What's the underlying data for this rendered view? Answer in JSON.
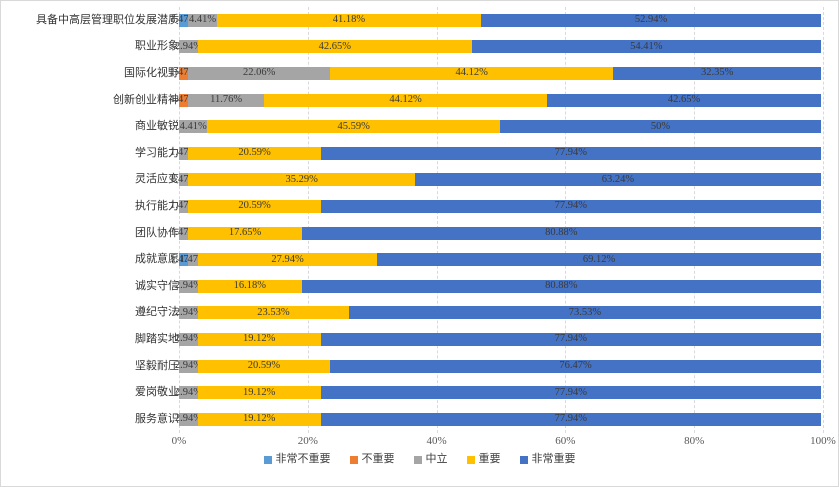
{
  "chart_data": {
    "type": "bar",
    "orientation": "horizontal",
    "stacked": true,
    "title": "",
    "xlabel": "",
    "ylabel": "",
    "xlim": [
      0,
      100
    ],
    "grid": "vertical-dashed",
    "legend_position": "bottom-center",
    "axis_ticks": [
      "0%",
      "20%",
      "40%",
      "60%",
      "80%",
      "100%"
    ],
    "legend": [
      {
        "name": "非常不重要",
        "color": "#5B9BD5"
      },
      {
        "name": "不重要",
        "color": "#ED7D31"
      },
      {
        "name": "中立",
        "color": "#A5A5A5"
      },
      {
        "name": "重要",
        "color": "#FFC000"
      },
      {
        "name": "非常重要",
        "color": "#4472C4"
      }
    ],
    "rows": [
      {
        "category": "具备中高层管理职位发展潜质",
        "values": [
          1.47,
          0,
          4.41,
          41.18,
          52.94
        ],
        "labels": [
          "1.47%",
          "",
          "4.41%",
          "41.18%",
          "52.94%"
        ]
      },
      {
        "category": "职业形象",
        "values": [
          0,
          0,
          2.94,
          42.65,
          54.41
        ],
        "labels": [
          "",
          "",
          "2.94%",
          "42.65%",
          "54.41%"
        ]
      },
      {
        "category": "国际化视野",
        "values": [
          0,
          1.47,
          22.06,
          44.12,
          32.35
        ],
        "labels": [
          "",
          "1.47%",
          "22.06%",
          "44.12%",
          "32.35%"
        ]
      },
      {
        "category": "创新创业精神",
        "values": [
          0,
          1.47,
          11.76,
          44.12,
          42.65
        ],
        "labels": [
          "",
          "1.47%",
          "11.76%",
          "44.12%",
          "42.65%"
        ]
      },
      {
        "category": "商业敏锐",
        "values": [
          0,
          0,
          4.41,
          45.59,
          50
        ],
        "labels": [
          "",
          "",
          "4.41%",
          "45.59%",
          "50%"
        ]
      },
      {
        "category": "学习能力",
        "values": [
          0,
          0,
          1.47,
          20.59,
          77.94
        ],
        "labels": [
          "",
          "",
          "1.47%",
          "20.59%",
          "77.94%"
        ]
      },
      {
        "category": "灵活应变",
        "values": [
          0,
          0,
          1.47,
          35.29,
          63.24
        ],
        "labels": [
          "",
          "",
          "1.47%",
          "35.29%",
          "63.24%"
        ]
      },
      {
        "category": "执行能力",
        "values": [
          0,
          0,
          1.47,
          20.59,
          77.94
        ],
        "labels": [
          "",
          "",
          "1.47%",
          "20.59%",
          "77.94%"
        ]
      },
      {
        "category": "团队协作",
        "values": [
          0,
          0,
          1.47,
          17.65,
          80.88
        ],
        "labels": [
          "",
          "",
          "1.47%",
          "17.65%",
          "80.88%"
        ]
      },
      {
        "category": "成就意愿",
        "values": [
          1.47,
          0,
          1.47,
          27.94,
          69.12
        ],
        "labels": [
          "1.47%",
          "",
          "1.47%",
          "27.94%",
          "69.12%"
        ]
      },
      {
        "category": "诚实守信",
        "values": [
          0,
          0,
          2.94,
          16.18,
          80.88
        ],
        "labels": [
          "",
          "",
          "2.94%",
          "16.18%",
          "80.88%"
        ]
      },
      {
        "category": "遵纪守法",
        "values": [
          0,
          0,
          2.94,
          23.53,
          73.53
        ],
        "labels": [
          "",
          "",
          "2.94%",
          "23.53%",
          "73.53%"
        ]
      },
      {
        "category": "脚踏实地",
        "values": [
          0,
          0,
          2.94,
          19.12,
          77.94
        ],
        "labels": [
          "",
          "",
          "2.94%",
          "19.12%",
          "77.94%"
        ]
      },
      {
        "category": "坚毅耐压",
        "values": [
          0,
          0,
          2.94,
          20.59,
          76.47
        ],
        "labels": [
          "",
          "",
          "2.94%",
          "20.59%",
          "76.47%"
        ]
      },
      {
        "category": "爱岗敬业",
        "values": [
          0,
          0,
          2.94,
          19.12,
          77.94
        ],
        "labels": [
          "",
          "",
          "2.94%",
          "19.12%",
          "77.94%"
        ]
      },
      {
        "category": "服务意识",
        "values": [
          0,
          0,
          2.94,
          19.12,
          77.94
        ],
        "labels": [
          "",
          "",
          "2.94%",
          "19.12%",
          "77.94%"
        ]
      }
    ]
  }
}
